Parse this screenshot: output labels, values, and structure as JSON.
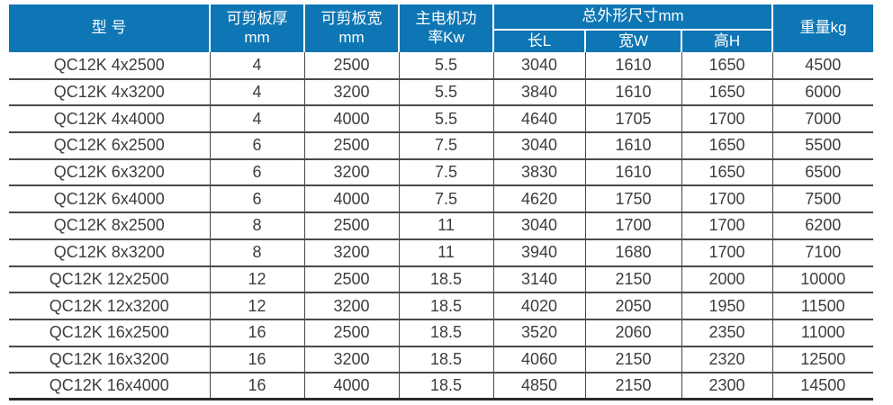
{
  "table": {
    "headers": {
      "model": "型 号",
      "thickness_line1": "可剪板厚",
      "thickness_line2": "mm",
      "sheet_width_line1": "可剪板宽",
      "sheet_width_line2": "mm",
      "power_line1": "主电机功",
      "power_line2": "率Kw",
      "dimensions": "总外形尺寸mm",
      "length": "长L",
      "width": "宽W",
      "height": "高H",
      "weight": "重量kg"
    },
    "rows": [
      [
        "QC12K 4x2500",
        "4",
        "2500",
        "5.5",
        "3040",
        "1610",
        "1650",
        "4500"
      ],
      [
        "QC12K 4x3200",
        "4",
        "3200",
        "5.5",
        "3840",
        "1610",
        "1650",
        "6000"
      ],
      [
        "QC12K 4x4000",
        "4",
        "4000",
        "5.5",
        "4640",
        "1705",
        "1700",
        "7000"
      ],
      [
        "QC12K 6x2500",
        "6",
        "2500",
        "7.5",
        "3040",
        "1610",
        "1650",
        "5500"
      ],
      [
        "QC12K 6x3200",
        "6",
        "3200",
        "7.5",
        "3830",
        "1610",
        "1650",
        "6500"
      ],
      [
        "QC12K 6x4000",
        "6",
        "4000",
        "7.5",
        "4620",
        "1750",
        "1700",
        "7500"
      ],
      [
        "QC12K 8x2500",
        "8",
        "2500",
        "11",
        "3040",
        "1700",
        "1700",
        "6200"
      ],
      [
        "QC12K 8x3200",
        "8",
        "3200",
        "11",
        "3940",
        "1680",
        "1700",
        "7100"
      ],
      [
        "QC12K 12x2500",
        "12",
        "2500",
        "18.5",
        "3140",
        "2150",
        "2000",
        "10000"
      ],
      [
        "QC12K 12x3200",
        "12",
        "3200",
        "18.5",
        "4020",
        "2050",
        "1950",
        "11500"
      ],
      [
        "QC12K 16x2500",
        "16",
        "2500",
        "18.5",
        "3520",
        "2060",
        "2350",
        "11000"
      ],
      [
        "QC12K 16x3200",
        "16",
        "3200",
        "18.5",
        "4060",
        "2150",
        "2320",
        "12500"
      ],
      [
        "QC12K 16x4000",
        "16",
        "4000",
        "18.5",
        "4850",
        "2150",
        "2300",
        "14500"
      ]
    ]
  },
  "colors": {
    "header_bg": "#0e76b4",
    "header_text": "#ffffff",
    "body_text": "#3d3d3d",
    "grid_line": "#4a4a4a",
    "table_bottom_border": "#2b2b2b",
    "background": "#ffffff"
  }
}
